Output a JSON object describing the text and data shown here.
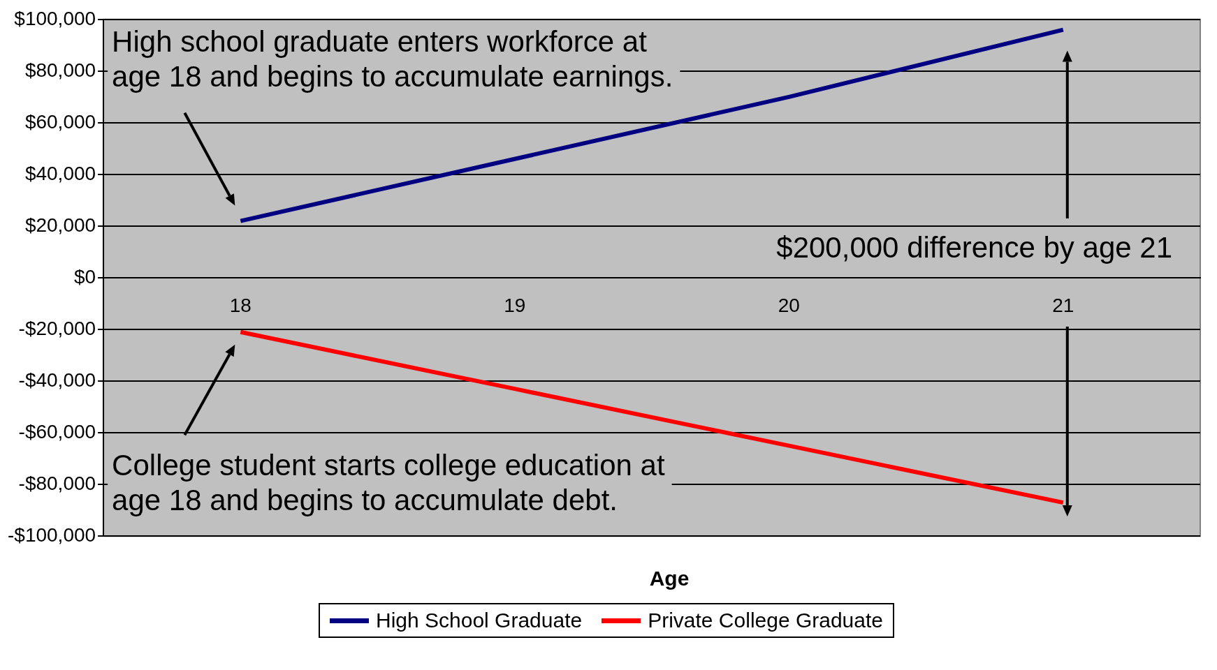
{
  "chart_data": {
    "type": "line",
    "xlabel": "Age",
    "categories": [
      "18",
      "19",
      "20",
      "21"
    ],
    "series": [
      {
        "name": "High School Graduate",
        "color": "#000080",
        "values": [
          22000,
          46000,
          70000,
          96000
        ]
      },
      {
        "name": "Private College Graduate",
        "color": "#ff0000",
        "values": [
          -21000,
          -43000,
          -65000,
          -87000
        ]
      }
    ],
    "ylim": [
      -100000,
      100000
    ],
    "yticks": [
      {
        "value": -100000,
        "label": "-$100,000"
      },
      {
        "value": -80000,
        "label": "-$80,000"
      },
      {
        "value": -60000,
        "label": "-$60,000"
      },
      {
        "value": -40000,
        "label": "-$40,000"
      },
      {
        "value": -20000,
        "label": "-$20,000"
      },
      {
        "value": 0,
        "label": "$0"
      },
      {
        "value": 20000,
        "label": "$20,000"
      },
      {
        "value": 40000,
        "label": "$40,000"
      },
      {
        "value": 60000,
        "label": "$60,000"
      },
      {
        "value": 80000,
        "label": "$80,000"
      },
      {
        "value": 100000,
        "label": "$100,000"
      }
    ],
    "annotations": [
      "High school graduate enters workforce at age 18 and begins to accumulate earnings.",
      "College student starts college education at age 18 and begins to accumulate debt.",
      "$200,000 difference by age 21"
    ],
    "grid": "y",
    "legend": "bottom",
    "marker": "none",
    "line_style": "solid"
  }
}
